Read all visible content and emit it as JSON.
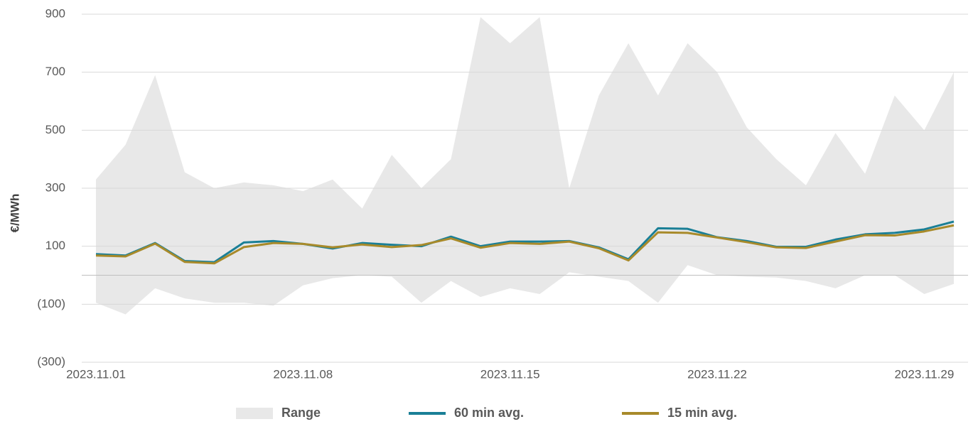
{
  "chart_data": {
    "type": "line",
    "y_label": "€/MWh",
    "x": [
      "2023.11.01",
      "2023.11.02",
      "2023.11.03",
      "2023.11.04",
      "2023.11.05",
      "2023.11.06",
      "2023.11.07",
      "2023.11.08",
      "2023.11.09",
      "2023.11.10",
      "2023.11.11",
      "2023.11.12",
      "2023.11.13",
      "2023.11.14",
      "2023.11.15",
      "2023.11.16",
      "2023.11.17",
      "2023.11.18",
      "2023.11.19",
      "2023.11.20",
      "2023.11.21",
      "2023.11.22",
      "2023.11.23",
      "2023.11.24",
      "2023.11.25",
      "2023.11.26",
      "2023.11.27",
      "2023.11.28",
      "2023.11.29",
      "2023.11.30"
    ],
    "xticks": [
      "2023.11.01",
      "2023.11.08",
      "2023.11.15",
      "2023.11.22",
      "2023.11.29"
    ],
    "ylim": [
      -300,
      900
    ],
    "yticks": [
      {
        "value": -300,
        "label": "(300)"
      },
      {
        "value": -100,
        "label": "(100)"
      },
      100,
      300,
      500,
      700,
      900
    ],
    "grid": true,
    "legend": "bottom",
    "series": [
      {
        "name": "Range",
        "type": "range",
        "color": "#e8e8e8",
        "high": [
          330,
          450,
          690,
          355,
          300,
          320,
          310,
          290,
          330,
          230,
          415,
          300,
          400,
          890,
          800,
          890,
          300,
          620,
          800,
          620,
          800,
          700,
          510,
          400,
          310,
          490,
          350,
          620,
          500,
          700
        ],
        "low": [
          -95,
          -135,
          -45,
          -80,
          -95,
          -95,
          -105,
          -35,
          -10,
          0,
          -5,
          -95,
          -20,
          -75,
          -45,
          -65,
          10,
          -5,
          -20,
          -95,
          35,
          0,
          -5,
          -8,
          -20,
          -45,
          0,
          0,
          -65,
          -30
        ]
      },
      {
        "name": "60 min avg.",
        "type": "line",
        "color": "#1a7f96",
        "values": [
          73,
          68,
          111,
          49,
          45,
          113,
          118,
          108,
          92,
          111,
          105,
          100,
          133,
          100,
          116,
          116,
          118,
          96,
          55,
          162,
          160,
          131,
          118,
          98,
          98,
          123,
          141,
          146,
          158,
          185
        ]
      },
      {
        "name": "15 min avg.",
        "type": "line",
        "color": "#a88a2a",
        "values": [
          68,
          65,
          109,
          46,
          41,
          97,
          111,
          108,
          96,
          106,
          97,
          104,
          127,
          95,
          111,
          108,
          116,
          93,
          51,
          148,
          146,
          130,
          114,
          96,
          94,
          116,
          138,
          137,
          151,
          172
        ]
      }
    ]
  }
}
